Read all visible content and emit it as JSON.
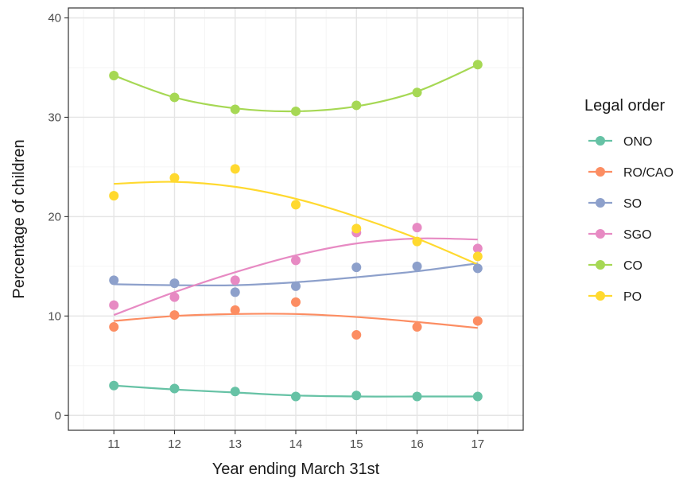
{
  "chart_data": {
    "type": "scatter",
    "xlabel": "Year ending March 31st",
    "ylabel": "Percentage of children",
    "x": [
      11,
      12,
      13,
      14,
      15,
      16,
      17
    ],
    "xlim": [
      10.25,
      17.75
    ],
    "ylim": [
      -1.5,
      41
    ],
    "x_ticks": [
      "11",
      "12",
      "13",
      "14",
      "15",
      "16",
      "17"
    ],
    "y_ticks": [
      "0",
      "10",
      "20",
      "30",
      "40"
    ],
    "grid": true,
    "smoothed_trend_lines": true,
    "legend": {
      "title": "Legal order",
      "position": "right"
    },
    "series": [
      {
        "name": "ONO",
        "color": "#66c2a5",
        "points": [
          3.0,
          2.7,
          2.4,
          1.9,
          2.0,
          1.9,
          1.9
        ],
        "trend": [
          3.0,
          2.6,
          2.3,
          2.0,
          1.9,
          1.9,
          1.9
        ]
      },
      {
        "name": "RO/CAO",
        "color": "#fc8d62",
        "points": [
          8.9,
          10.1,
          10.6,
          11.4,
          8.1,
          8.9,
          9.5
        ],
        "trend": [
          9.5,
          10.0,
          10.2,
          10.2,
          9.9,
          9.4,
          8.8
        ]
      },
      {
        "name": "SO",
        "color": "#8da0cb",
        "points": [
          13.6,
          13.3,
          12.4,
          13.0,
          14.9,
          15.0,
          14.8
        ],
        "trend": [
          13.2,
          13.1,
          13.1,
          13.4,
          13.9,
          14.5,
          15.3
        ]
      },
      {
        "name": "SGO",
        "color": "#e78ac3",
        "points": [
          11.1,
          11.9,
          13.6,
          15.6,
          18.4,
          18.9,
          16.8
        ],
        "trend": [
          10.1,
          12.4,
          14.4,
          16.1,
          17.3,
          17.8,
          17.7
        ]
      },
      {
        "name": "CO",
        "color": "#a6d854",
        "points": [
          34.2,
          32.0,
          30.8,
          30.6,
          31.2,
          32.5,
          35.3
        ],
        "trend": [
          34.2,
          32.0,
          30.9,
          30.6,
          31.1,
          32.6,
          35.3
        ]
      },
      {
        "name": "PO",
        "color": "#ffd92f",
        "points": [
          22.1,
          23.9,
          24.8,
          21.2,
          18.8,
          17.5,
          16.0
        ],
        "trend": [
          23.3,
          23.5,
          23.0,
          21.8,
          20.0,
          17.8,
          15.2
        ]
      }
    ]
  }
}
